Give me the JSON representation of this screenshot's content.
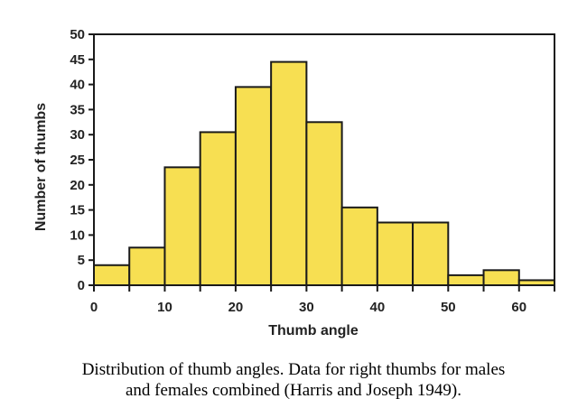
{
  "chart_data": {
    "type": "bar",
    "xlabel": "Thumb angle",
    "ylabel": "Number of thumbs",
    "xlim": [
      0,
      65
    ],
    "ylim": [
      0,
      50
    ],
    "bin_width": 5,
    "bin_starts": [
      0,
      5,
      10,
      15,
      20,
      25,
      30,
      35,
      40,
      45,
      50,
      55,
      60
    ],
    "values": [
      4,
      7.5,
      23.5,
      30.5,
      39.5,
      44.5,
      32.5,
      15.5,
      12.5,
      12.5,
      2,
      3,
      1
    ],
    "xticks": [
      0,
      10,
      20,
      30,
      40,
      50,
      60
    ],
    "yticks": [
      0,
      5,
      10,
      15,
      20,
      25,
      30,
      35,
      40,
      45,
      50
    ],
    "bar_color": "#f7df52",
    "edge_color": "#1a1a1a",
    "grid": false
  },
  "caption": {
    "line1": "Distribution of thumb angles. Data for right thumbs for males",
    "line2": "and females combined (Harris and Joseph 1949)."
  }
}
